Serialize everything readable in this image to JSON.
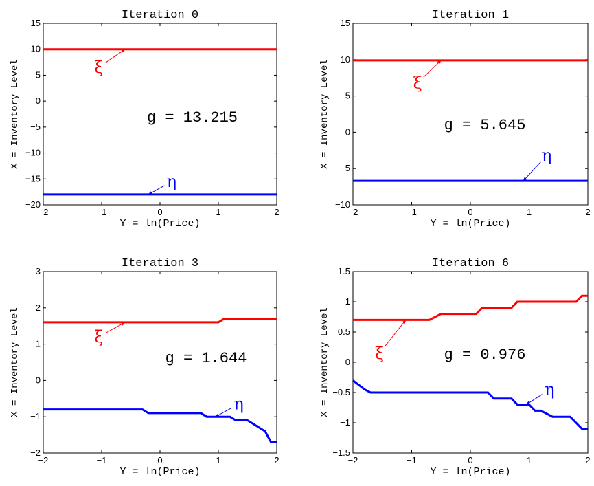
{
  "chart_data": [
    {
      "type": "line",
      "title": "Iteration 0",
      "xlabel": "Y = ln(Price)",
      "ylabel": "X = Inventory Level",
      "xlim": [
        -2,
        2
      ],
      "ylim": [
        -20,
        15
      ],
      "xticks": [
        "−2",
        "−1",
        "0",
        "1",
        "2"
      ],
      "yticks": [
        "−20",
        "−15",
        "−10",
        "−5",
        "0",
        "5",
        "10",
        "15"
      ],
      "annotation": "g = 13.215",
      "series": [
        {
          "name": "ξ",
          "color": "#ff0000",
          "x": [
            -2,
            2
          ],
          "y": [
            10,
            10
          ],
          "label_pos": [
            -1.05,
            6.5
          ],
          "arrow_to": [
            -0.6,
            10
          ]
        },
        {
          "name": "η",
          "color": "#0000ff",
          "x": [
            -2,
            2
          ],
          "y": [
            -18,
            -18
          ],
          "label_pos": [
            0.2,
            -15.5
          ],
          "arrow_to": [
            -0.2,
            -18
          ]
        }
      ]
    },
    {
      "type": "line",
      "title": "Iteration 1",
      "xlabel": "Y = ln(Price)",
      "ylabel": "X = Inventory Level",
      "xlim": [
        -2,
        2
      ],
      "ylim": [
        -10,
        15
      ],
      "xticks": [
        "−2",
        "−1",
        "0",
        "1",
        "2"
      ],
      "yticks": [
        "−10",
        "−5",
        "0",
        "5",
        "10",
        "15"
      ],
      "annotation": "g = 5.645",
      "series": [
        {
          "name": "ξ",
          "color": "#ff0000",
          "x": [
            -2,
            2
          ],
          "y": [
            9.9,
            9.9
          ],
          "label_pos": [
            -0.9,
            6.8
          ],
          "arrow_to": [
            -0.5,
            9.9
          ]
        },
        {
          "name": "η",
          "color": "#0000ff",
          "x": [
            -2,
            2
          ],
          "y": [
            -6.7,
            -6.7
          ],
          "label_pos": [
            1.3,
            -3.2
          ],
          "arrow_to": [
            0.9,
            -6.7
          ]
        }
      ]
    },
    {
      "type": "line",
      "title": "Iteration 3",
      "xlabel": "Y = ln(Price)",
      "ylabel": "X = Inventory Level",
      "xlim": [
        -2,
        2
      ],
      "ylim": [
        -2,
        3
      ],
      "xticks": [
        "−2",
        "−1",
        "0",
        "1",
        "2"
      ],
      "yticks": [
        "−2",
        "−1",
        "0",
        "1",
        "2",
        "3"
      ],
      "annotation": "g = 1.644",
      "series": [
        {
          "name": "ξ",
          "color": "#ff0000",
          "x": [
            -2,
            1.0,
            1.1,
            2
          ],
          "y": [
            1.6,
            1.6,
            1.7,
            1.7
          ],
          "label_pos": [
            -1.05,
            1.2
          ],
          "arrow_to": [
            -0.6,
            1.6
          ]
        },
        {
          "name": "η",
          "color": "#0000ff",
          "x": [
            -2,
            -0.3,
            -0.2,
            0.7,
            0.8,
            1.2,
            1.3,
            1.5,
            1.6,
            1.8,
            1.9,
            2.0
          ],
          "y": [
            -0.8,
            -0.8,
            -0.9,
            -0.9,
            -1.0,
            -1.0,
            -1.1,
            -1.1,
            -1.2,
            -1.4,
            -1.7,
            -1.7
          ],
          "label_pos": [
            1.35,
            -0.65
          ],
          "arrow_to": [
            0.95,
            -1.0
          ]
        }
      ]
    },
    {
      "type": "line",
      "title": "Iteration 6",
      "xlabel": "Y = ln(Price)",
      "ylabel": "X = Inventory Level",
      "xlim": [
        -2,
        2
      ],
      "ylim": [
        -1.5,
        1.5
      ],
      "xticks": [
        "−2",
        "−1",
        "0",
        "1",
        "2"
      ],
      "yticks": [
        "−1.5",
        "−1",
        "−0.5",
        "0",
        "0.5",
        "1",
        "1.5"
      ],
      "annotation": "g = 0.976",
      "series": [
        {
          "name": "ξ",
          "color": "#ff0000",
          "x": [
            -2,
            -0.8,
            -0.7,
            -0.5,
            -0.4,
            0.1,
            0.2,
            0.6,
            0.7,
            0.8,
            0.9,
            1.8,
            1.9,
            2.0
          ],
          "y": [
            0.7,
            0.7,
            0.7,
            0.8,
            0.8,
            0.8,
            0.9,
            0.9,
            0.9,
            1.0,
            1.0,
            1.0,
            1.1,
            1.1
          ],
          "label_pos": [
            -1.55,
            0.15
          ],
          "arrow_to": [
            -1.1,
            0.7
          ]
        },
        {
          "name": "η",
          "color": "#0000ff",
          "x": [
            -2.0,
            -1.8,
            -1.7,
            0.3,
            0.4,
            0.7,
            0.8,
            1.0,
            1.1,
            1.2,
            1.4,
            1.7,
            1.9,
            2.0
          ],
          "y": [
            -0.3,
            -0.45,
            -0.5,
            -0.5,
            -0.6,
            -0.6,
            -0.7,
            -0.7,
            -0.8,
            -0.8,
            -0.9,
            -0.9,
            -1.1,
            -1.1
          ],
          "label_pos": [
            1.35,
            -0.45
          ],
          "arrow_to": [
            0.95,
            -0.7
          ]
        }
      ]
    }
  ]
}
